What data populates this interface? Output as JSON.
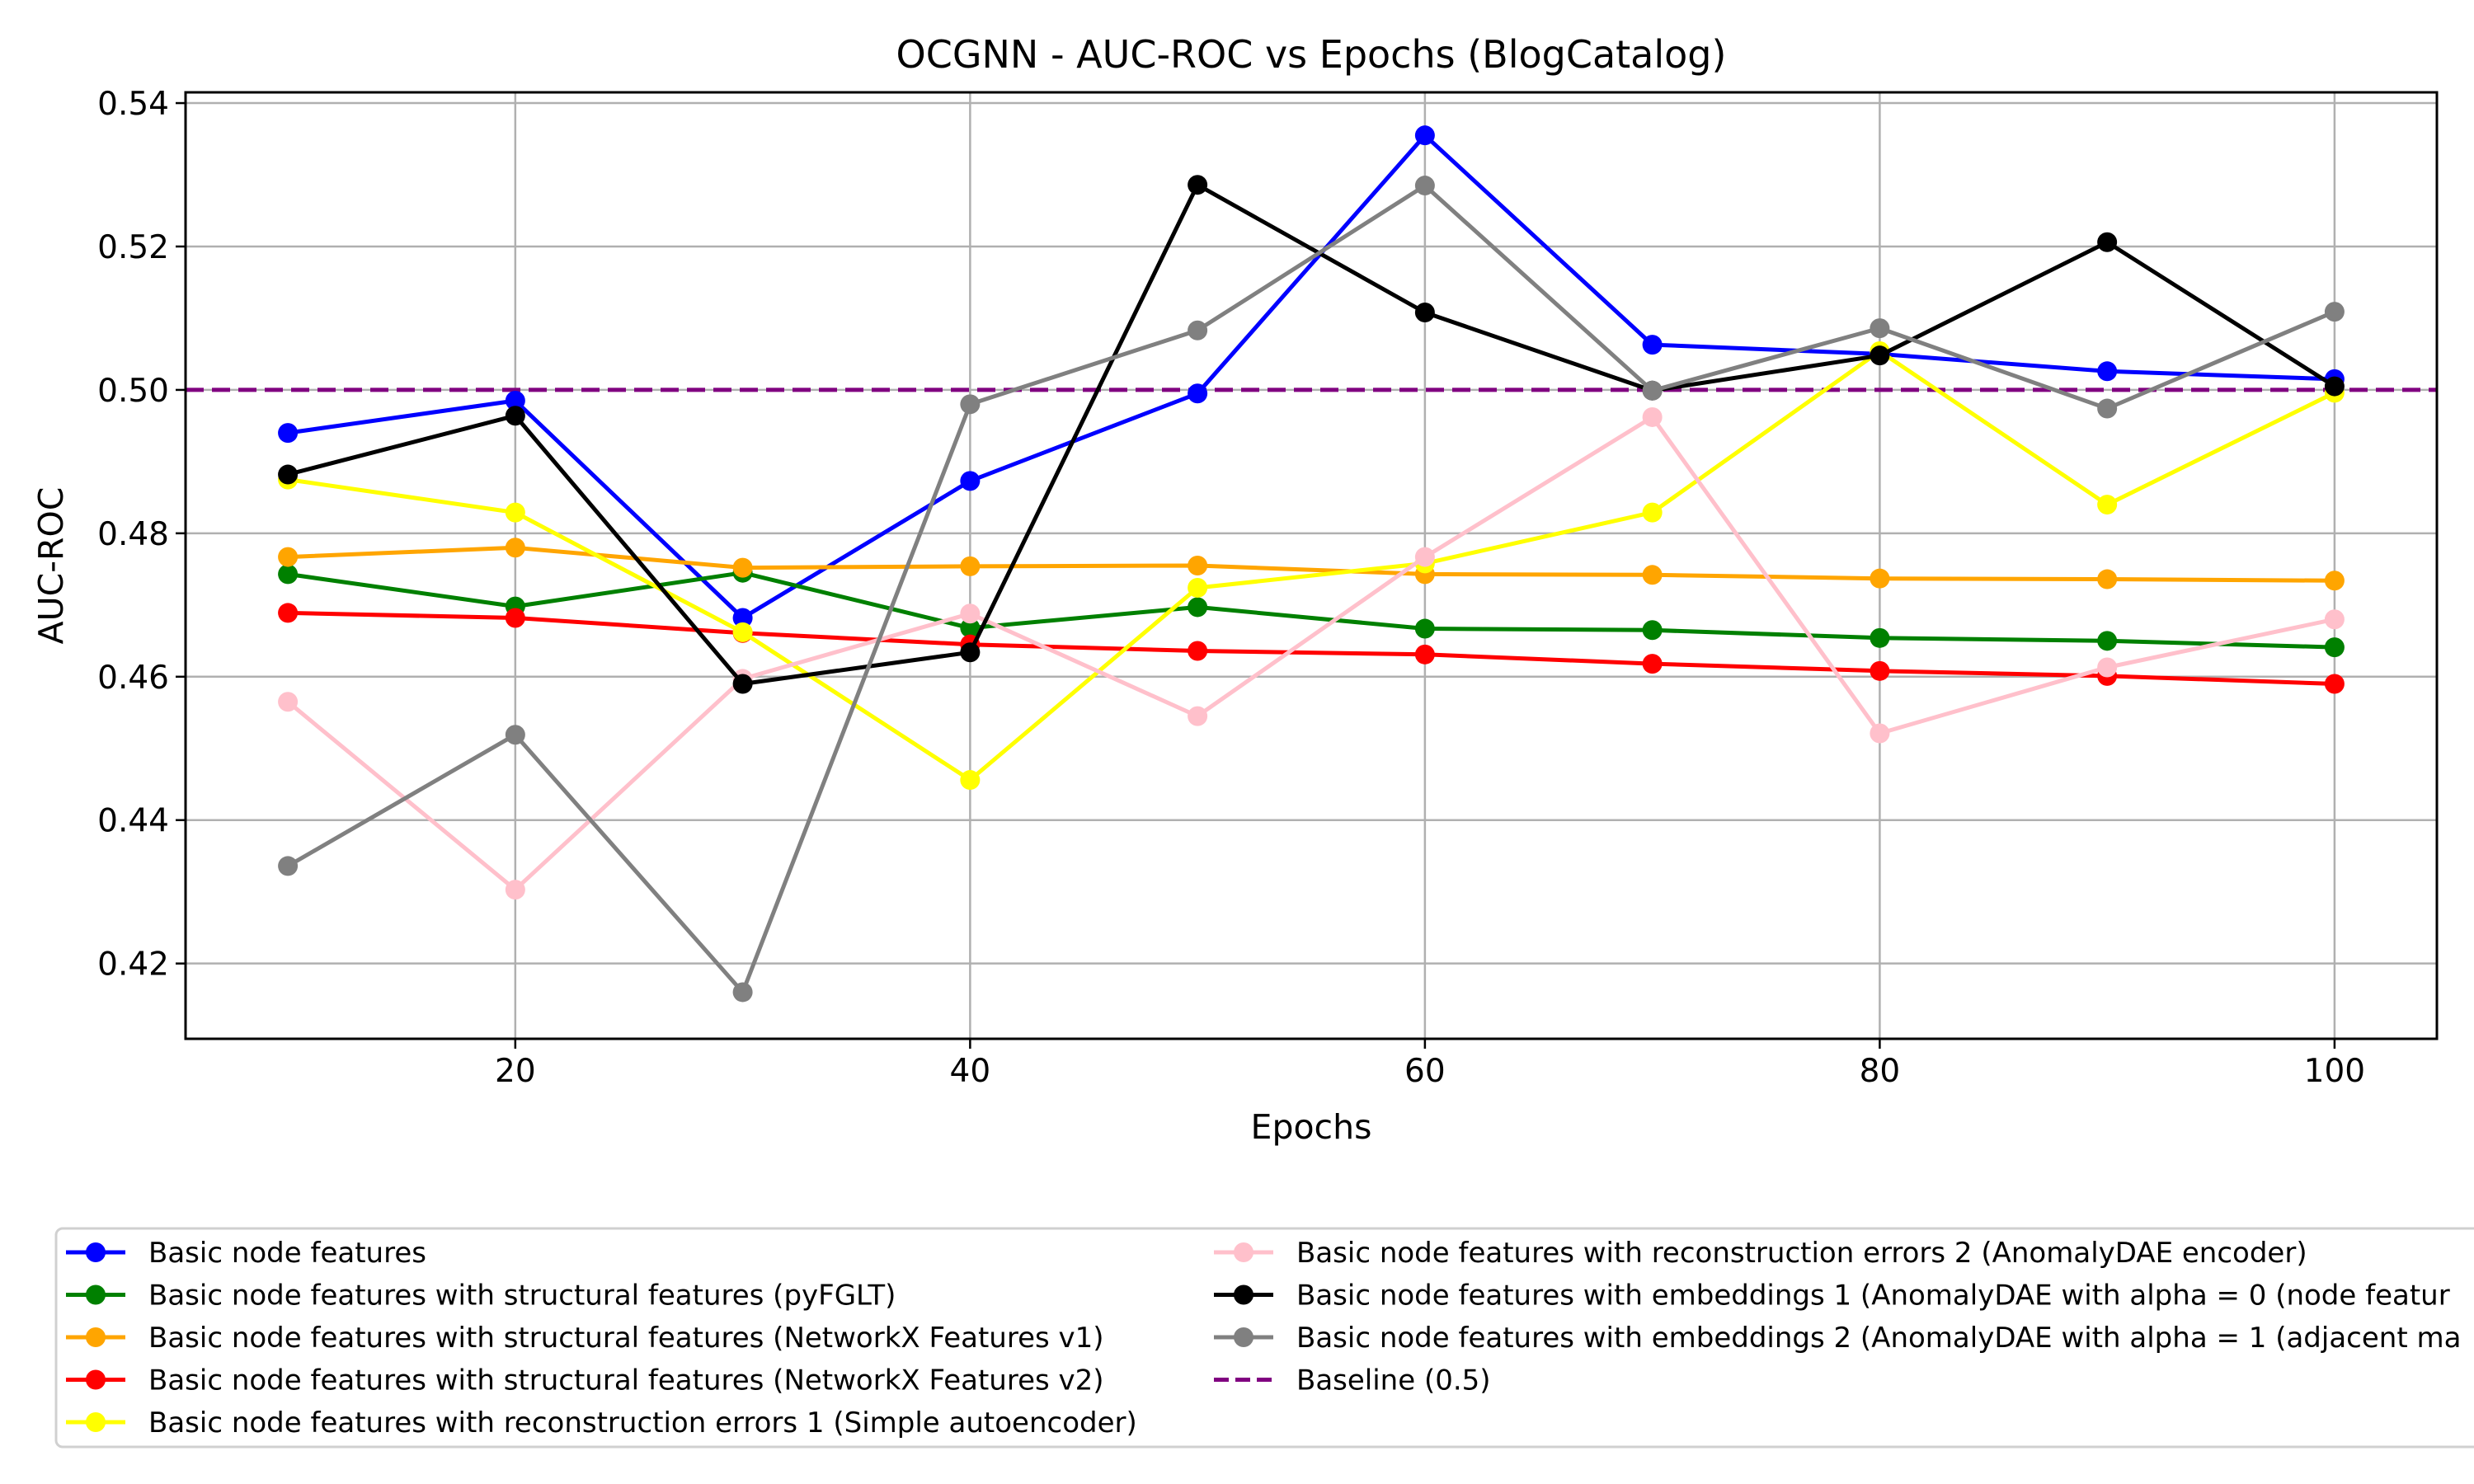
{
  "chart_data": {
    "type": "line",
    "title": "OCGNN - AUC-ROC vs Epochs (BlogCatalog)",
    "xlabel": "Epochs",
    "ylabel": "AUC-ROC",
    "x": [
      10,
      20,
      30,
      40,
      50,
      60,
      70,
      80,
      90,
      100
    ],
    "xlim": [
      5.5,
      104.5
    ],
    "ylim": [
      0.4095,
      0.5415
    ],
    "xticks": [
      20,
      40,
      60,
      80,
      100
    ],
    "yticks": [
      0.42,
      0.44,
      0.46,
      0.48,
      0.5,
      0.52,
      0.54
    ],
    "xtick_labels": [
      "20",
      "40",
      "60",
      "80",
      "100"
    ],
    "ytick_labels": [
      "0.42",
      "0.44",
      "0.46",
      "0.48",
      "0.50",
      "0.52",
      "0.54"
    ],
    "grid": true,
    "legend_position": "bottom",
    "series": [
      {
        "name": "Basic node features",
        "color": "#0000ff",
        "values": [
          0.494,
          0.4985,
          0.4682,
          0.4873,
          0.4995,
          0.5355,
          0.5063,
          0.505,
          0.5026,
          0.5015
        ]
      },
      {
        "name": "Basic node features with structural features (pyFGLT)",
        "color": "#008000",
        "values": [
          0.4743,
          0.4698,
          0.4745,
          0.4668,
          0.4697,
          0.4667,
          0.4665,
          0.4654,
          0.465,
          0.4641
        ]
      },
      {
        "name": "Basic node features with structural features (NetworkX Features v1)",
        "color": "#ffa500",
        "values": [
          0.4767,
          0.478,
          0.4752,
          0.4754,
          0.4755,
          0.4743,
          0.4742,
          0.4737,
          0.4736,
          0.4734
        ]
      },
      {
        "name": "Basic node features with structural features (NetworkX Features v2)",
        "color": "#ff0000",
        "values": [
          0.4689,
          0.4682,
          0.4661,
          0.4645,
          0.4636,
          0.4631,
          0.4618,
          0.4608,
          0.4601,
          0.459
        ]
      },
      {
        "name": "Basic node features with reconstruction errors 1 (Simple autoencoder)",
        "color": "#ffff00",
        "values": [
          0.4875,
          0.4829,
          0.4662,
          0.4456,
          0.4724,
          0.4758,
          0.4829,
          0.5054,
          0.484,
          0.4996
        ]
      },
      {
        "name": "Basic node features with reconstruction errors 2 (AnomalyDAE encoder)",
        "color": "#ffc0cb",
        "values": [
          0.4565,
          0.4303,
          0.4597,
          0.4688,
          0.4545,
          0.4767,
          0.4962,
          0.4521,
          0.4613,
          0.468
        ]
      },
      {
        "name": "Basic node features with embeddings 1 (AnomalyDAE with alpha = 0 (node featur",
        "color": "#000000",
        "values": [
          0.4882,
          0.4964,
          0.459,
          0.4634,
          0.5286,
          0.5108,
          0.4999,
          0.5048,
          0.5206,
          0.5005
        ]
      },
      {
        "name": "Basic node features with embeddings 2 (AnomalyDAE with alpha = 1 (adjacent ma",
        "color": "#808080",
        "values": [
          0.4336,
          0.4519,
          0.416,
          0.498,
          0.5083,
          0.5285,
          0.4999,
          0.5086,
          0.4974,
          0.5109
        ]
      }
    ],
    "baseline": {
      "name": "Baseline (0.5)",
      "value": 0.5,
      "color": "#800080",
      "style": "dashed"
    }
  }
}
